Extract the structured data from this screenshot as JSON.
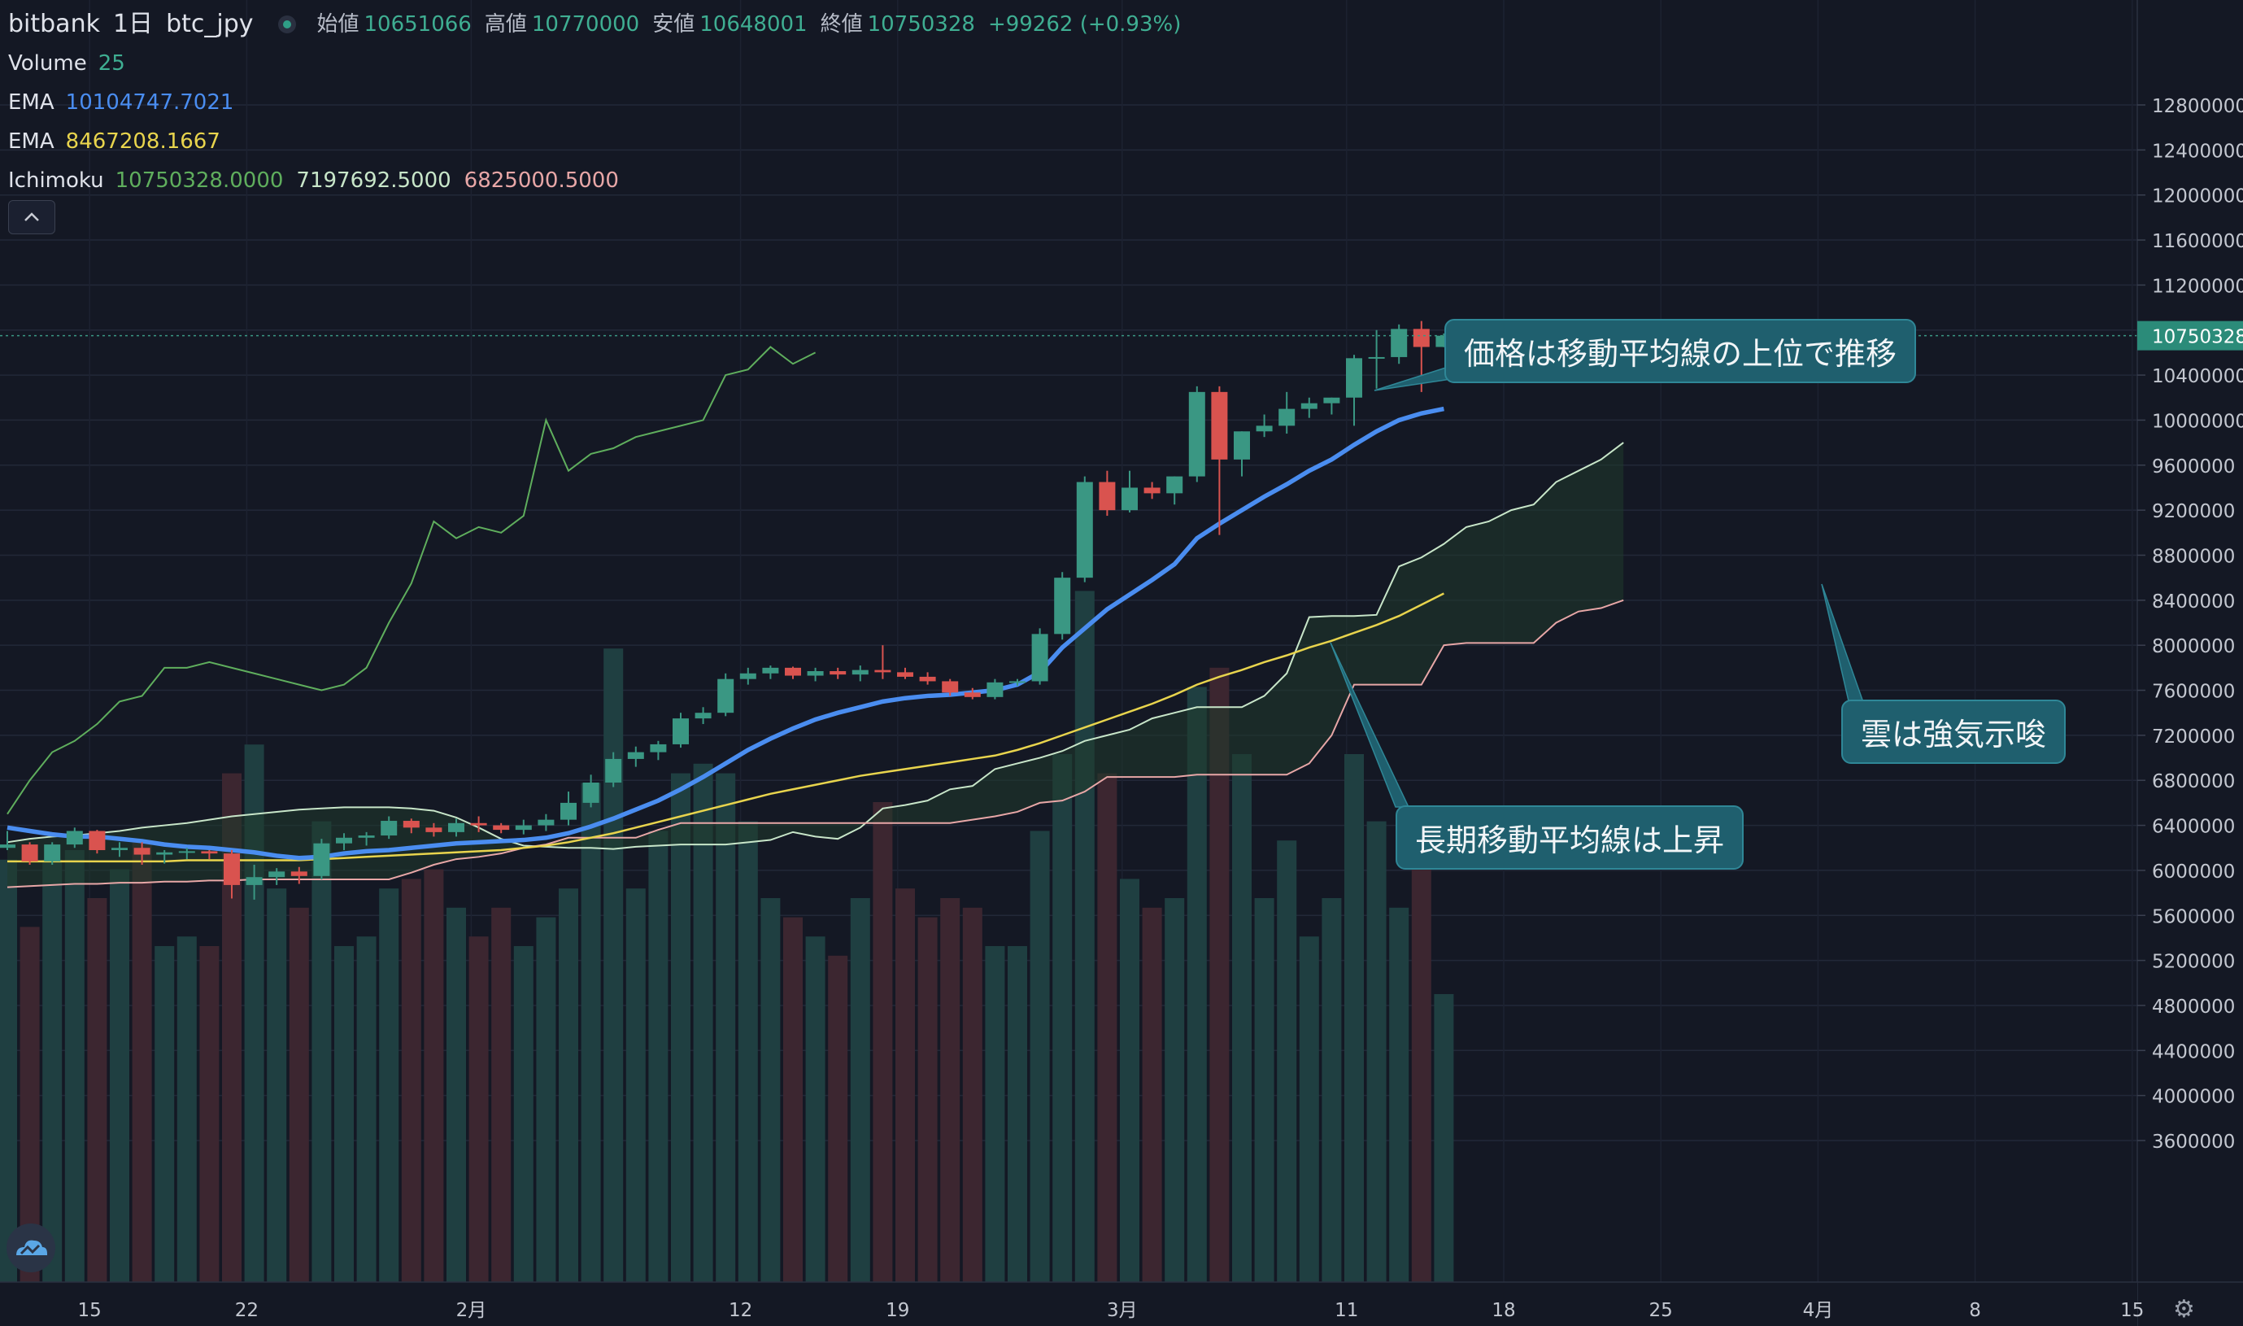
{
  "header": {
    "exchange": "bitbank",
    "timeframe": "1日",
    "symbol": "btc_jpy",
    "ohlc": [
      {
        "label": "始値",
        "value": "10651066"
      },
      {
        "label": "高値",
        "value": "10770000"
      },
      {
        "label": "安値",
        "value": "10648001"
      },
      {
        "label": "終値",
        "value": "10750328"
      }
    ],
    "change": "+99262 (+0.93%)"
  },
  "indicators": {
    "volume": {
      "label": "Volume",
      "value": "25"
    },
    "ema1": {
      "label": "EMA",
      "value": "10104747.7021"
    },
    "ema2": {
      "label": "EMA",
      "value": "8467208.1667"
    },
    "ichimoku": {
      "label": "Ichimoku",
      "values": [
        "10750328.0000",
        "7197692.5000",
        "6825000.5000"
      ]
    }
  },
  "collapse_icon": "chevron-up-icon",
  "annotations": [
    "価格は移動平均線の上位で推移",
    "雲は強気示唆",
    "長期移動平均線は上昇"
  ],
  "colors": {
    "up": "#3a9783",
    "down": "#d9534f",
    "ema_fast": "#4a8df0",
    "ema_slow": "#e8d44d",
    "chikou": "#5fae5d",
    "span_a": "#c8e6c9",
    "span_b": "#e8a7a7",
    "callout": "#1f5f6e",
    "axis_text": "#c3c7d0",
    "bg": "#141824"
  },
  "chart_data": {
    "type": "candlestick",
    "x_ticks": [
      "15",
      "22",
      "2月",
      "12",
      "19",
      "3月",
      "11",
      "18",
      "25",
      "4月",
      "8",
      "15"
    ],
    "y_ticks": [
      "12800000",
      "12400000",
      "12000000",
      "11600000",
      "11200000",
      "10800000",
      "10400000",
      "10000000",
      "9600000",
      "9200000",
      "8800000",
      "8400000",
      "8000000",
      "7600000",
      "7200000",
      "6800000",
      "6400000",
      "6000000",
      "5600000",
      "5200000",
      "4800000",
      "4400000",
      "4000000",
      "3600000"
    ],
    "y_range": [
      3200000,
      12800000
    ],
    "last_price": "10750328",
    "candles": [
      [
        6200000,
        6350000,
        6180000,
        6230000
      ],
      [
        6230000,
        6250000,
        6050000,
        6080000
      ],
      [
        6080000,
        6250000,
        6050000,
        6230000
      ],
      [
        6230000,
        6380000,
        6200000,
        6350000
      ],
      [
        6350000,
        6360000,
        6150000,
        6180000
      ],
      [
        6180000,
        6250000,
        6120000,
        6200000
      ],
      [
        6200000,
        6250000,
        6050000,
        6140000
      ],
      [
        6140000,
        6180000,
        6060000,
        6160000
      ],
      [
        6160000,
        6200000,
        6100000,
        6170000
      ],
      [
        6170000,
        6180000,
        6100000,
        6150000
      ],
      [
        6150000,
        6180000,
        5750000,
        5870000
      ],
      [
        5870000,
        6050000,
        5740000,
        5940000
      ],
      [
        5940000,
        6020000,
        5870000,
        5990000
      ],
      [
        5990000,
        6030000,
        5880000,
        5950000
      ],
      [
        5950000,
        6280000,
        5920000,
        6240000
      ],
      [
        6240000,
        6330000,
        6180000,
        6290000
      ],
      [
        6290000,
        6340000,
        6220000,
        6310000
      ],
      [
        6310000,
        6480000,
        6280000,
        6440000
      ],
      [
        6440000,
        6460000,
        6330000,
        6380000
      ],
      [
        6380000,
        6420000,
        6300000,
        6340000
      ],
      [
        6340000,
        6460000,
        6300000,
        6420000
      ],
      [
        6420000,
        6480000,
        6340000,
        6400000
      ],
      [
        6400000,
        6420000,
        6330000,
        6360000
      ],
      [
        6360000,
        6450000,
        6320000,
        6400000
      ],
      [
        6400000,
        6500000,
        6350000,
        6450000
      ],
      [
        6450000,
        6700000,
        6400000,
        6600000
      ],
      [
        6600000,
        6850000,
        6560000,
        6780000
      ],
      [
        6780000,
        7050000,
        6740000,
        6990000
      ],
      [
        6990000,
        7100000,
        6920000,
        7050000
      ],
      [
        7050000,
        7150000,
        6980000,
        7120000
      ],
      [
        7120000,
        7400000,
        7090000,
        7350000
      ],
      [
        7350000,
        7450000,
        7300000,
        7400000
      ],
      [
        7400000,
        7750000,
        7370000,
        7700000
      ],
      [
        7700000,
        7800000,
        7650000,
        7750000
      ],
      [
        7750000,
        7820000,
        7700000,
        7800000
      ],
      [
        7800000,
        7810000,
        7700000,
        7730000
      ],
      [
        7730000,
        7800000,
        7680000,
        7770000
      ],
      [
        7770000,
        7800000,
        7700000,
        7740000
      ],
      [
        7740000,
        7820000,
        7680000,
        7780000
      ],
      [
        7780000,
        8000000,
        7700000,
        7760000
      ],
      [
        7760000,
        7800000,
        7700000,
        7720000
      ],
      [
        7720000,
        7760000,
        7650000,
        7680000
      ],
      [
        7680000,
        7700000,
        7550000,
        7580000
      ],
      [
        7580000,
        7620000,
        7520000,
        7540000
      ],
      [
        7540000,
        7700000,
        7520000,
        7670000
      ],
      [
        7670000,
        7700000,
        7640000,
        7680000
      ],
      [
        7680000,
        8150000,
        7650000,
        8100000
      ],
      [
        8100000,
        8650000,
        8050000,
        8600000
      ],
      [
        8600000,
        9500000,
        8560000,
        9450000
      ],
      [
        9450000,
        9550000,
        9150000,
        9200000
      ],
      [
        9200000,
        9550000,
        9180000,
        9400000
      ],
      [
        9400000,
        9450000,
        9300000,
        9350000
      ],
      [
        9350000,
        9500000,
        9250000,
        9500000
      ],
      [
        9500000,
        10300000,
        9450000,
        10250000
      ],
      [
        10250000,
        10300000,
        8980000,
        9650000
      ],
      [
        9650000,
        9900000,
        9500000,
        9900000
      ],
      [
        9900000,
        10050000,
        9850000,
        9950000
      ],
      [
        9950000,
        10250000,
        9880000,
        10100000
      ],
      [
        10100000,
        10200000,
        10020000,
        10150000
      ],
      [
        10150000,
        10200000,
        10050000,
        10200000
      ],
      [
        10200000,
        10580000,
        9950000,
        10550000
      ],
      [
        10550000,
        10800000,
        10280000,
        10560000
      ],
      [
        10560000,
        10850000,
        10500000,
        10810000
      ],
      [
        10810000,
        10880000,
        10250000,
        10650000
      ],
      [
        10650000,
        10770000,
        10648000,
        10750000
      ]
    ],
    "volume": [
      2200,
      1850,
      2200,
      2250,
      2000,
      2150,
      2300,
      1750,
      1800,
      1750,
      2650,
      2800,
      2050,
      1950,
      2400,
      1750,
      1800,
      2050,
      2100,
      2150,
      1950,
      1800,
      1950,
      1750,
      1900,
      2050,
      2600,
      3300,
      2050,
      2350,
      2650,
      2700,
      2650,
      2400,
      2000,
      1900,
      1800,
      1700,
      2000,
      2500,
      2050,
      1900,
      2000,
      1950,
      1750,
      1750,
      2350,
      2750,
      3600,
      2650,
      2100,
      1950,
      2000,
      3100,
      3200,
      2750,
      2000,
      2300,
      1800,
      2000,
      2750,
      2400,
      1950,
      2400,
      1500
    ],
    "ema_fast": [
      6380000,
      6350000,
      6320000,
      6300000,
      6300000,
      6280000,
      6260000,
      6230000,
      6210000,
      6200000,
      6180000,
      6160000,
      6130000,
      6110000,
      6120000,
      6150000,
      6170000,
      6180000,
      6200000,
      6220000,
      6240000,
      6250000,
      6260000,
      6270000,
      6290000,
      6330000,
      6390000,
      6460000,
      6540000,
      6620000,
      6720000,
      6830000,
      6950000,
      7070000,
      7170000,
      7260000,
      7340000,
      7400000,
      7450000,
      7500000,
      7530000,
      7550000,
      7560000,
      7580000,
      7600000,
      7650000,
      7760000,
      7980000,
      8150000,
      8320000,
      8450000,
      8580000,
      8720000,
      8950000,
      9080000,
      9200000,
      9320000,
      9430000,
      9550000,
      9650000,
      9780000,
      9900000,
      10000000,
      10060000,
      10100000
    ],
    "ema_slow": [
      6080000,
      6080000,
      6080000,
      6080000,
      6080000,
      6080000,
      6080000,
      6080000,
      6090000,
      6090000,
      6090000,
      6090000,
      6090000,
      6090000,
      6100000,
      6110000,
      6120000,
      6130000,
      6140000,
      6150000,
      6160000,
      6170000,
      6180000,
      6200000,
      6220000,
      6250000,
      6290000,
      6330000,
      6380000,
      6430000,
      6480000,
      6530000,
      6580000,
      6630000,
      6680000,
      6720000,
      6760000,
      6800000,
      6840000,
      6870000,
      6900000,
      6930000,
      6960000,
      6990000,
      7020000,
      7070000,
      7130000,
      7200000,
      7270000,
      7340000,
      7410000,
      7480000,
      7560000,
      7650000,
      7720000,
      7780000,
      7850000,
      7910000,
      7980000,
      8040000,
      8110000,
      8180000,
      8260000,
      8360000,
      8460000
    ],
    "chikou": [
      6500000,
      6800000,
      7050000,
      7150000,
      7300000,
      7500000,
      7550000,
      7800000,
      7800000,
      7850000,
      7800000,
      7750000,
      7700000,
      7650000,
      7600000,
      7650000,
      7800000,
      8200000,
      8550000,
      9100000,
      8950000,
      9050000,
      9000000,
      9150000,
      10000000,
      9550000,
      9700000,
      9750000,
      9850000,
      9900000,
      9950000,
      10000000,
      10400000,
      10450000,
      10650000,
      10500000,
      10600000
    ],
    "span_a": [
      6250000,
      6280000,
      6300000,
      6310000,
      6330000,
      6350000,
      6380000,
      6400000,
      6420000,
      6450000,
      6480000,
      6500000,
      6520000,
      6540000,
      6550000,
      6560000,
      6560000,
      6560000,
      6550000,
      6530000,
      6470000,
      6380000,
      6280000,
      6220000,
      6210000,
      6200000,
      6200000,
      6190000,
      6210000,
      6220000,
      6230000,
      6230000,
      6230000,
      6250000,
      6270000,
      6340000,
      6300000,
      6280000,
      6380000,
      6550000,
      6580000,
      6620000,
      6720000,
      6750000,
      6900000,
      6950000,
      7000000,
      7060000,
      7150000,
      7200000,
      7250000,
      7350000,
      7400000,
      7450000,
      7450000,
      7450000,
      7550000,
      7750000,
      8250000,
      8260000,
      8260000,
      8270000,
      8700000,
      8780000,
      8900000,
      9050000,
      9100000,
      9200000,
      9250000,
      9450000,
      9550000,
      9650000,
      9800000
    ],
    "span_b": [
      5850000,
      5860000,
      5870000,
      5880000,
      5880000,
      5890000,
      5890000,
      5900000,
      5900000,
      5910000,
      5910000,
      5920000,
      5920000,
      5920000,
      5920000,
      5920000,
      5920000,
      5920000,
      5980000,
      6050000,
      6100000,
      6120000,
      6150000,
      6200000,
      6230000,
      6290000,
      6290000,
      6290000,
      6290000,
      6360000,
      6420000,
      6420000,
      6420000,
      6420000,
      6420000,
      6420000,
      6420000,
      6420000,
      6420000,
      6420000,
      6420000,
      6420000,
      6420000,
      6450000,
      6480000,
      6520000,
      6600000,
      6620000,
      6700000,
      6830000,
      6830000,
      6830000,
      6830000,
      6850000,
      6850000,
      6850000,
      6850000,
      6850000,
      6950000,
      7200000,
      7650000,
      7650000,
      7650000,
      7650000,
      8000000,
      8020000,
      8020000,
      8020000,
      8020000,
      8200000,
      8300000,
      8330000,
      8400000
    ]
  }
}
